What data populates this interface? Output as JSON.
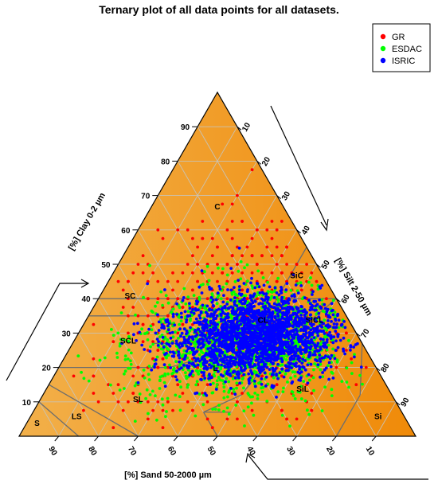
{
  "chart_data": {
    "type": "scatter",
    "subtype": "ternary",
    "title": "Ternary plot of all data points for all datasets.",
    "axes": {
      "clay": {
        "label": "[%] Clay 0-2 µm",
        "ticks": [
          "10",
          "20",
          "30",
          "40",
          "50",
          "60",
          "70",
          "80",
          "90"
        ]
      },
      "silt": {
        "label": "[%] Silt 2-50 µm",
        "ticks": [
          "10",
          "20",
          "30",
          "40",
          "50",
          "60",
          "70",
          "80",
          "90"
        ]
      },
      "sand": {
        "label": "[%] Sand 50-2000 µm",
        "ticks": [
          "90",
          "80",
          "70",
          "60",
          "50",
          "40",
          "30",
          "20",
          "10"
        ]
      }
    },
    "series": [
      {
        "name": "GR",
        "color": "#ff0000",
        "center": {
          "clay": 33,
          "silt": 38,
          "sand": 29
        },
        "spread": {
          "clay": 16,
          "silt": 16
        }
      },
      {
        "name": "ESDAC",
        "color": "#00ff00",
        "center": {
          "clay": 27,
          "silt": 43,
          "sand": 30
        },
        "spread": {
          "clay": 8,
          "silt": 13
        }
      },
      {
        "name": "ISRIC",
        "color": "#0000ff",
        "center": {
          "clay": 29,
          "silt": 45,
          "sand": 26
        },
        "spread": {
          "clay": 6,
          "silt": 10
        }
      }
    ],
    "regions": [
      {
        "label": "C",
        "clay": 66,
        "silt": 17,
        "sand": 17
      },
      {
        "label": "SiC",
        "clay": 46,
        "silt": 47,
        "sand": 7
      },
      {
        "label": "SC",
        "clay": 40,
        "silt": 8,
        "sand": 52
      },
      {
        "label": "CL",
        "clay": 33,
        "silt": 45,
        "sand": 22
      },
      {
        "label": "SiCL",
        "clay": 33,
        "silt": 58,
        "sand": 9
      },
      {
        "label": "SCL",
        "clay": 27,
        "silt": 14,
        "sand": 59
      },
      {
        "label": "L",
        "clay": 19,
        "silt": 40,
        "sand": 41
      },
      {
        "label": "SL",
        "clay": 10,
        "silt": 25,
        "sand": 65
      },
      {
        "label": "SiL",
        "clay": 13,
        "silt": 65,
        "sand": 22
      },
      {
        "label": "LS",
        "clay": 5,
        "silt": 12,
        "sand": 83
      },
      {
        "label": "S",
        "clay": 3,
        "silt": 3,
        "sand": 94
      },
      {
        "label": "Si",
        "clay": 5,
        "silt": 88,
        "sand": 7
      }
    ],
    "legend_position": "top-right",
    "grid": true
  }
}
